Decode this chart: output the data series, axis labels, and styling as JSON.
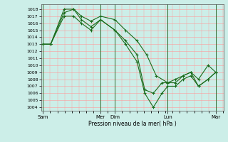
{
  "background_color": "#cceee8",
  "grid_color_h": "#ff9999",
  "grid_color_v": "#ff9999",
  "line_color": "#1a6b1a",
  "marker_color": "#1a6b1a",
  "xlabel": "Pression niveau de la mer( hPa )",
  "ylim": [
    1003.5,
    1018.7
  ],
  "yticks": [
    1004,
    1005,
    1006,
    1007,
    1008,
    1009,
    1010,
    1011,
    1012,
    1013,
    1014,
    1015,
    1016,
    1017,
    1018
  ],
  "xlim": [
    -0.1,
    9.4
  ],
  "xtick_positions": [
    0,
    3.0,
    3.75,
    6.5,
    9.0
  ],
  "xtick_labels": [
    "Sam",
    "Mer",
    "Dim",
    "Lun",
    "Mar"
  ],
  "vlines_x": [
    0,
    3.0,
    3.75,
    6.5,
    9.0
  ],
  "series1_x": [
    0,
    0.4,
    1.1,
    1.6,
    2.0,
    2.5,
    3.0,
    3.75,
    4.3,
    4.9,
    5.4,
    5.9,
    6.5,
    6.9,
    7.3,
    7.7,
    8.1,
    8.6,
    9.0
  ],
  "series1_y": [
    1013,
    1013,
    1018,
    1018,
    1017,
    1016.3,
    1017,
    1016.5,
    1015,
    1013.5,
    1011.5,
    1008.5,
    1007.5,
    1007.5,
    1008.5,
    1009,
    1008,
    1010,
    1009
  ],
  "series2_x": [
    0,
    0.4,
    1.1,
    1.6,
    2.0,
    2.5,
    3.0,
    3.75,
    4.3,
    4.9,
    5.3,
    5.75,
    6.2,
    6.5,
    6.9,
    7.3,
    7.7,
    8.1,
    8.6,
    9.0
  ],
  "series2_y": [
    1013,
    1013,
    1017.5,
    1018,
    1016.5,
    1015.5,
    1016.5,
    1015,
    1013.5,
    1011.5,
    1006.5,
    1006,
    1007.5,
    1007.5,
    1008,
    1008.5,
    1009,
    1007,
    1008,
    1009
  ],
  "series3_x": [
    0,
    0.4,
    1.1,
    1.6,
    2.0,
    2.5,
    3.0,
    3.75,
    4.3,
    4.9,
    5.3,
    5.75,
    6.2,
    6.5,
    6.9,
    7.3,
    7.7,
    8.1,
    8.6,
    9.0
  ],
  "series3_y": [
    1013,
    1013,
    1017,
    1017,
    1016,
    1015,
    1016.5,
    1015,
    1013,
    1010.5,
    1006,
    1004,
    1006,
    1007,
    1007,
    1008,
    1008.5,
    1007,
    1008,
    1009
  ]
}
